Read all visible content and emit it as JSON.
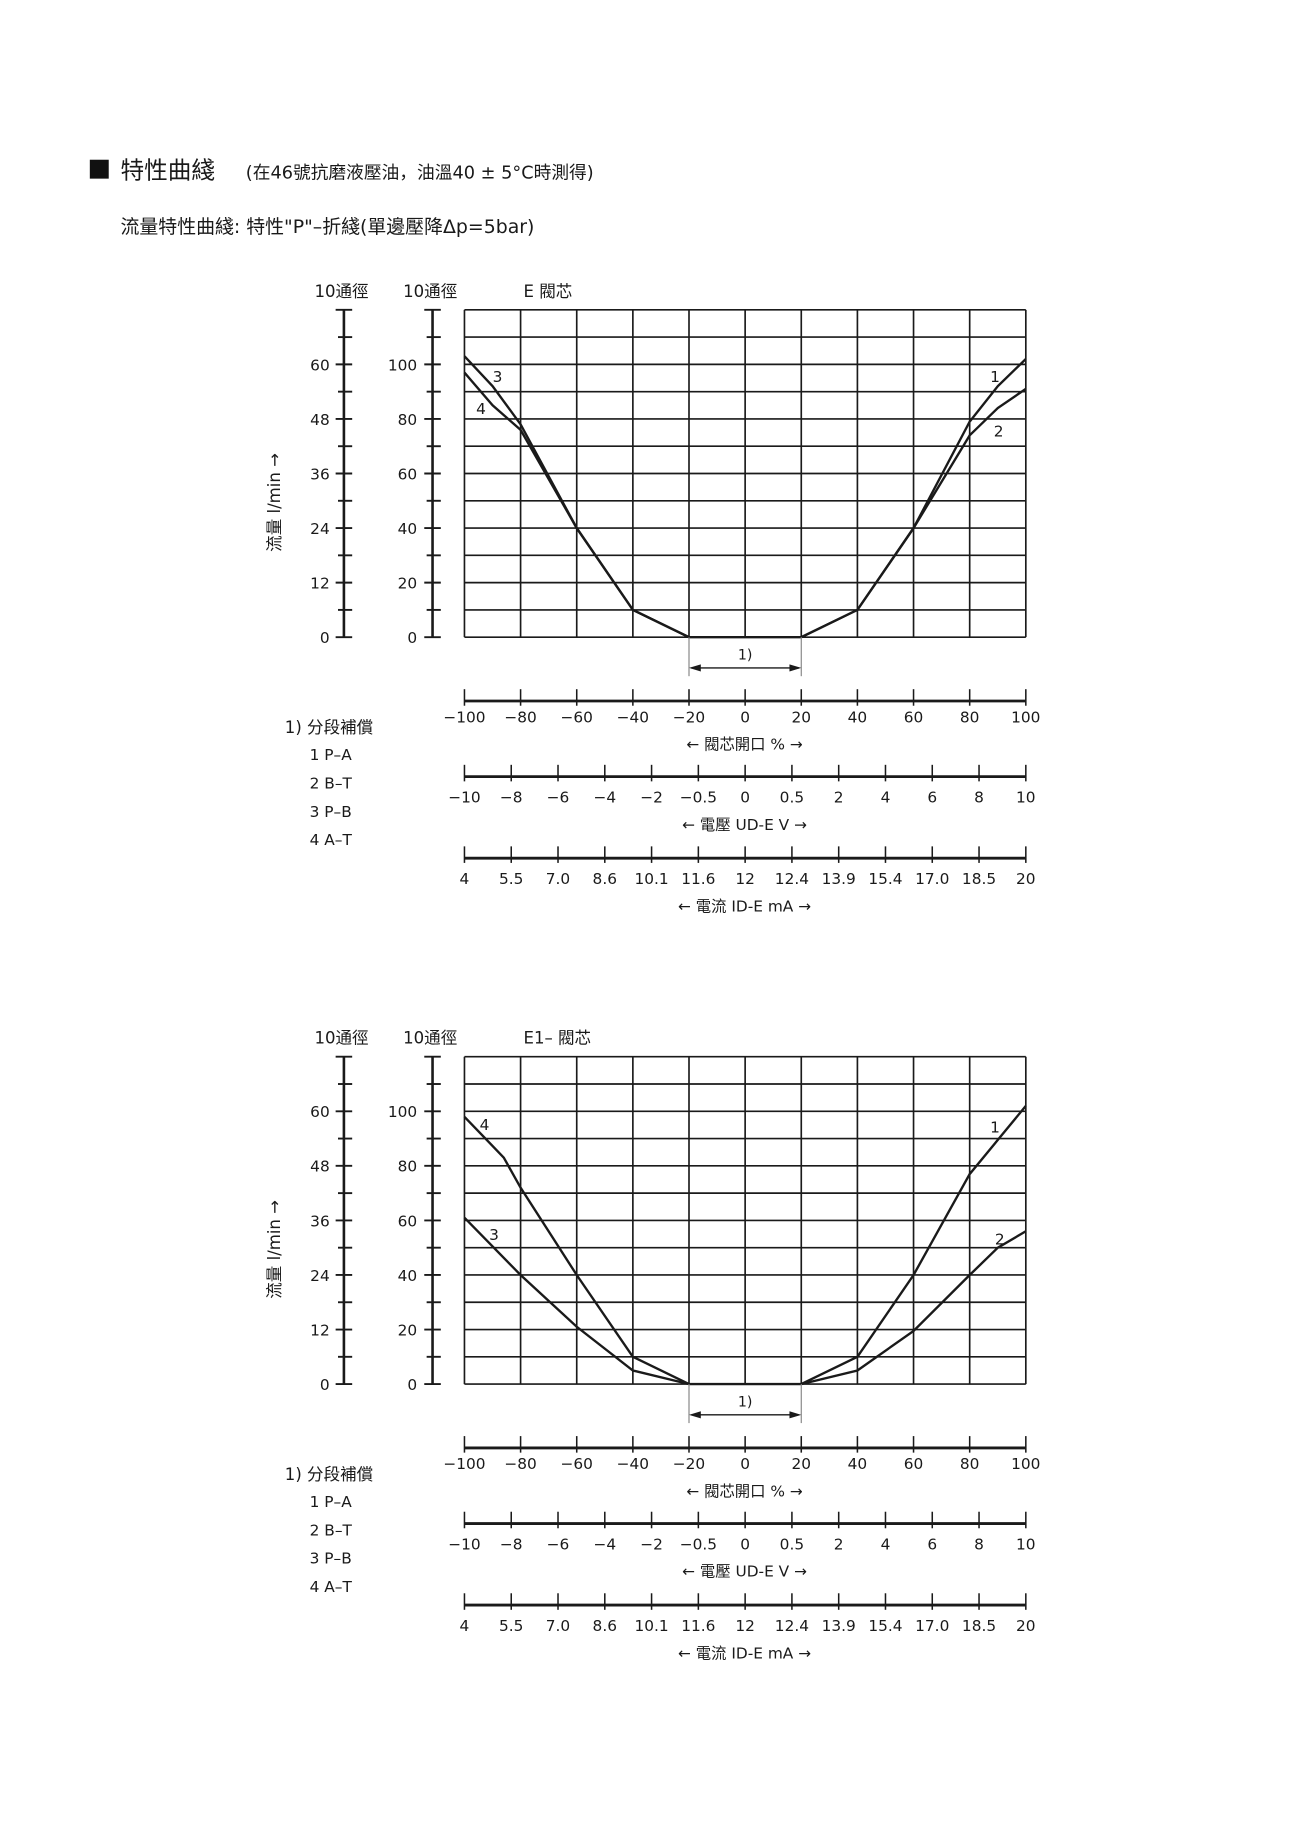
{
  "header": {
    "title": "特性曲綫",
    "title_note": "(在46號抗磨液壓油，油溫40 ± 5°C時測得)",
    "subtitle": "流量特性曲綫: 特性\"P\"–折綫(單邊壓降Δp=5bar)"
  },
  "colors": {
    "line": "#1a1a1a",
    "grid": "#1a1a1a",
    "bracket": "#888888"
  },
  "chart_data": [
    {
      "type": "line",
      "title": "E 閥芯",
      "ylabel": "流量 l/min →",
      "y_axes": [
        {
          "header": "10通徑",
          "ticks": [
            "0",
            "12",
            "24",
            "36",
            "48",
            "60"
          ],
          "range": [
            0,
            72
          ]
        },
        {
          "header": "10通徑",
          "ticks": [
            "0",
            "20",
            "40",
            "60",
            "80",
            "100"
          ],
          "range": [
            0,
            120
          ]
        }
      ],
      "xlim": [
        -100,
        100
      ],
      "ylim": [
        0,
        120
      ],
      "grid": true,
      "deadband_label": "1)",
      "deadband": [
        -20,
        20
      ],
      "x_axes": [
        {
          "ticks": [
            "−100",
            "−80",
            "−60",
            "−40",
            "−20",
            "0",
            "20",
            "40",
            "60",
            "80",
            "100"
          ],
          "label": "← 閥芯開口 % →"
        },
        {
          "ticks": [
            "−10",
            "−8",
            "−6",
            "−4",
            "−2",
            "−0.5",
            "0",
            "0.5",
            "2",
            "4",
            "6",
            "8",
            "10"
          ],
          "label": "← 電壓 UD-E V →"
        },
        {
          "ticks": [
            "4",
            "5.5",
            "7.0",
            "8.6",
            "10.1",
            "11.6",
            "12",
            "12.4",
            "13.9",
            "15.4",
            "17.0",
            "18.5",
            "20"
          ],
          "label": "← 電流 ID-E mA →"
        }
      ],
      "legend": {
        "title": "1) 分段補償",
        "items": [
          "1  P–A",
          "2  B–T",
          "3  P–B",
          "4  A–T"
        ]
      },
      "series": [
        {
          "name": "1",
          "x": [
            20,
            40,
            60,
            80,
            90,
            100
          ],
          "y": [
            0,
            10,
            40,
            79,
            92,
            102
          ]
        },
        {
          "name": "2",
          "x": [
            20,
            40,
            60,
            80,
            90,
            100
          ],
          "y": [
            0,
            10,
            40,
            74,
            84,
            91
          ]
        },
        {
          "name": "3",
          "x": [
            -100,
            -90,
            -80,
            -60,
            -40,
            -20,
            20
          ],
          "y": [
            103,
            92,
            78,
            40,
            10,
            0,
            0
          ]
        },
        {
          "name": "4",
          "x": [
            -100,
            -90,
            -80,
            -60,
            -40,
            -20
          ],
          "y": [
            97,
            85,
            76,
            40,
            10,
            0
          ]
        }
      ]
    },
    {
      "type": "line",
      "title": "E1– 閥芯",
      "ylabel": "流量 l/min →",
      "y_axes": [
        {
          "header": "10通徑",
          "ticks": [
            "0",
            "12",
            "24",
            "36",
            "48",
            "60"
          ],
          "range": [
            0,
            72
          ]
        },
        {
          "header": "10通徑",
          "ticks": [
            "0",
            "20",
            "40",
            "60",
            "80",
            "100"
          ],
          "range": [
            0,
            120
          ]
        }
      ],
      "xlim": [
        -100,
        100
      ],
      "ylim": [
        0,
        120
      ],
      "grid": true,
      "deadband_label": "1)",
      "deadband": [
        -20,
        20
      ],
      "x_axes": [
        {
          "ticks": [
            "−100",
            "−80",
            "−60",
            "−40",
            "−20",
            "0",
            "20",
            "40",
            "60",
            "80",
            "100"
          ],
          "label": "← 閥芯開口 % →"
        },
        {
          "ticks": [
            "−10",
            "−8",
            "−6",
            "−4",
            "−2",
            "−0.5",
            "0",
            "0.5",
            "2",
            "4",
            "6",
            "8",
            "10"
          ],
          "label": "← 電壓 UD-E V →"
        },
        {
          "ticks": [
            "4",
            "5.5",
            "7.0",
            "8.6",
            "10.1",
            "11.6",
            "12",
            "12.4",
            "13.9",
            "15.4",
            "17.0",
            "18.5",
            "20"
          ],
          "label": "← 電流 ID-E mA →"
        }
      ],
      "legend": {
        "title": "1) 分段補償",
        "items": [
          "1  P–A",
          "2  B–T",
          "3  P–B",
          "4  A–T"
        ]
      },
      "series": [
        {
          "name": "1",
          "x": [
            20,
            40,
            60,
            80,
            90,
            100
          ],
          "y": [
            0,
            10,
            40,
            77,
            89.5,
            102
          ]
        },
        {
          "name": "2",
          "x": [
            20,
            40,
            60,
            80,
            90,
            100
          ],
          "y": [
            0,
            5,
            19.5,
            40,
            50,
            56
          ]
        },
        {
          "name": "3",
          "x": [
            -100,
            -80,
            -60,
            -40,
            -20,
            20
          ],
          "y": [
            61,
            40,
            21,
            5,
            0,
            0
          ]
        },
        {
          "name": "4",
          "x": [
            -100,
            -86,
            -80,
            -60,
            -40,
            -20
          ],
          "y": [
            98,
            83,
            72,
            40,
            10,
            0
          ]
        }
      ]
    }
  ]
}
